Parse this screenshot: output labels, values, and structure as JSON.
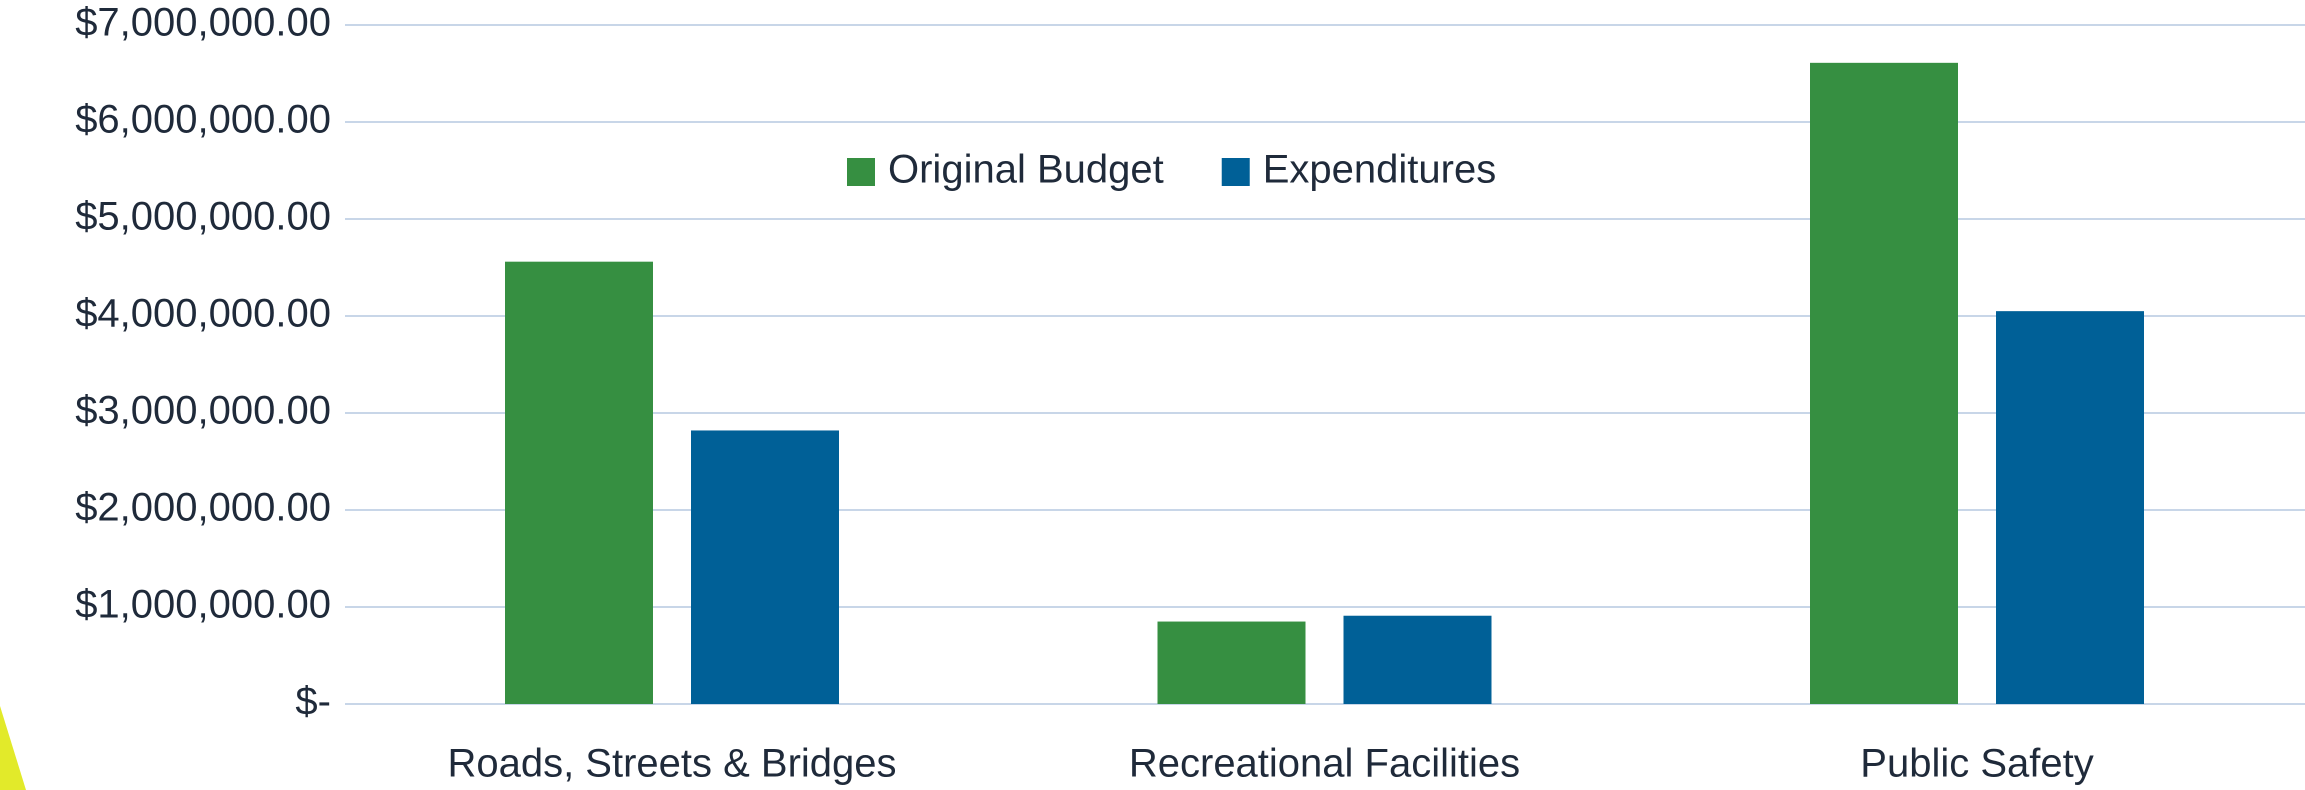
{
  "chart_data": {
    "type": "bar",
    "categories": [
      "Roads, Streets & Bridges",
      "Recreational Facilities",
      "Public Safety"
    ],
    "series": [
      {
        "name": "Original Budget",
        "color": "#368f41",
        "values": [
          4560000,
          850000,
          6610000
        ]
      },
      {
        "name": "Expenditures",
        "color": "#006097",
        "values": [
          2820000,
          910000,
          4050000
        ]
      }
    ],
    "ylim": [
      0,
      7000000
    ],
    "yticks": [
      {
        "value": 0,
        "label": "$-"
      },
      {
        "value": 1000000,
        "label": "$1,000,000.00"
      },
      {
        "value": 2000000,
        "label": "$2,000,000.00"
      },
      {
        "value": 3000000,
        "label": "$3,000,000.00"
      },
      {
        "value": 4000000,
        "label": "$4,000,000.00"
      },
      {
        "value": 5000000,
        "label": "$5,000,000.00"
      },
      {
        "value": 6000000,
        "label": "$6,000,000.00"
      },
      {
        "value": 7000000,
        "label": "$7,000,000.00"
      }
    ],
    "grid": true,
    "legend": "top"
  }
}
